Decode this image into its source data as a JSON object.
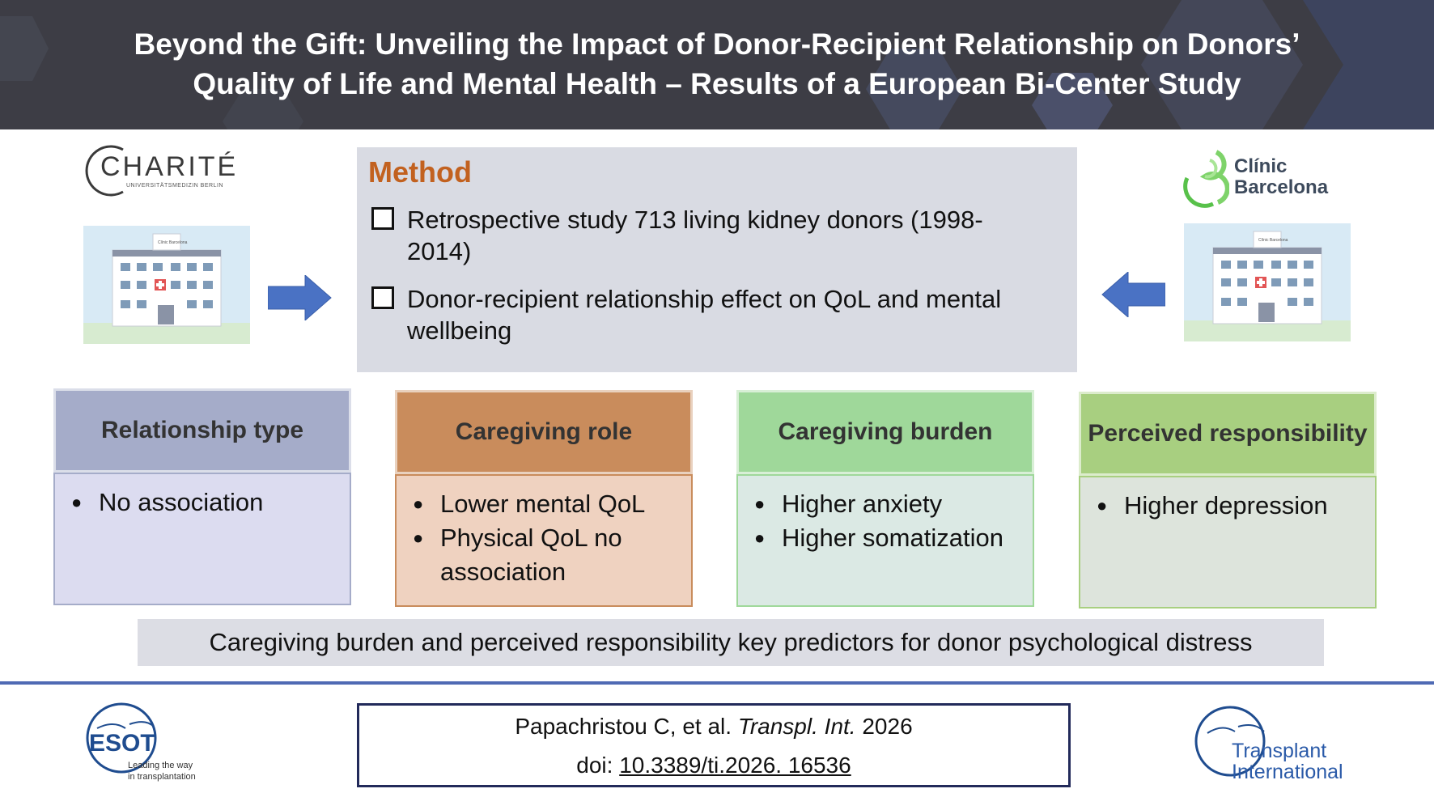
{
  "title": {
    "line1": "Beyond the Gift: Unveiling the Impact of Donor-Recipient Relationship on Donors’",
    "line2": "Quality of Life and Mental Health – Results of a European Bi-Center Study"
  },
  "logos": {
    "charite": {
      "name": "CHARITÉ",
      "sub": "UNIVERSITÄTSMEDIZIN BERLIN"
    },
    "clinic": {
      "line1": "Clínic",
      "line2": "Barcelona"
    },
    "esot": {
      "name": "ESOT",
      "tagline1": "Leading the way",
      "tagline2": "in transplantation"
    },
    "ti": {
      "line1": "Transplant",
      "line2": "International"
    },
    "hospital_sign": "Clínic Barcelona"
  },
  "method": {
    "heading": "Method",
    "items": [
      {
        "line1": "Retrospective study 713 living kidney donors (1998-",
        "line2": "2014)"
      },
      {
        "line1": "Donor-recipient relationship effect on QoL and mental",
        "line2": "wellbeing"
      }
    ]
  },
  "cards": [
    {
      "heading": "Relationship type",
      "bullets": [
        "No association"
      ],
      "head_color": "#a5acc9",
      "body_color": "#dcdcf0"
    },
    {
      "heading": "Caregiving role",
      "bullets": [
        "Lower mental QoL",
        "Physical QoL no association"
      ],
      "head_color": "#c98c5c",
      "body_color": "#efd2c0"
    },
    {
      "heading": "Caregiving burden",
      "bullets": [
        "Higher anxiety",
        "Higher somatization"
      ],
      "head_color": "#9fd89a",
      "body_color": "#dbe9e4"
    },
    {
      "heading": "Perceived responsibility",
      "bullets": [
        "Higher depression"
      ],
      "head_color": "#a8cf80",
      "body_color": "#dde4dc"
    }
  ],
  "conclusion": "Caregiving burden and perceived responsibility key predictors for donor psychological distress",
  "citation": {
    "authors": "Papachristou C, et al.",
    "journal": "Transpl. Int.",
    "year": "2026",
    "doi_label": "doi:",
    "doi": "10.3389/ti.2026. 16536"
  },
  "colors": {
    "banner": "#3d3d45",
    "method_title": "#c2611f",
    "arrow": "#4a72c4",
    "rule": "#4f6ab4",
    "esot_blue": "#1f4c8f",
    "ti_blue": "#2a5aa8"
  }
}
